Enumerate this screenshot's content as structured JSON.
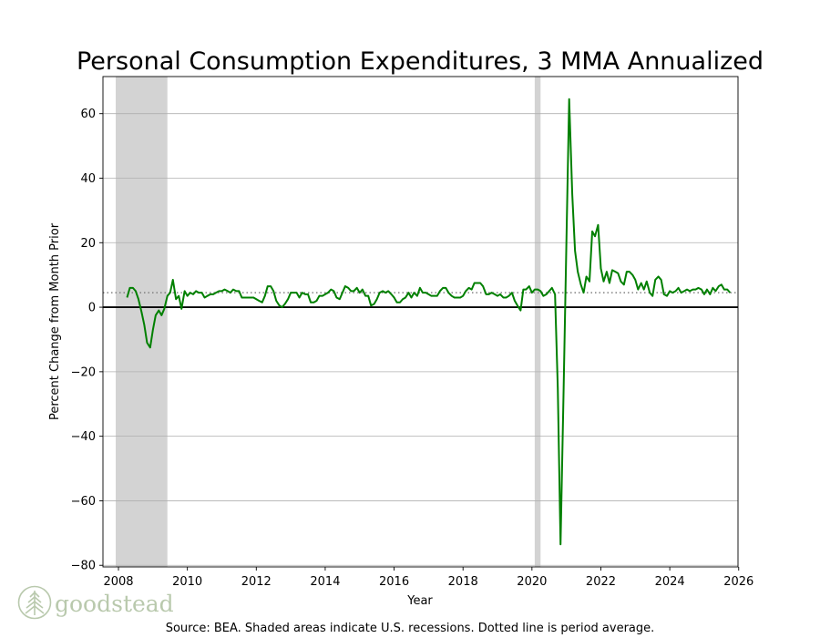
{
  "chart_data": {
    "type": "line",
    "title": "Personal Consumption Expenditures, 3 MMA Annualized",
    "xlabel": "Year",
    "ylabel": "Percent Change from Month Prior",
    "source_note": "Source: BEA. Shaded areas indicate U.S. recessions. Dotted line is period average.",
    "xlim": [
      2007.55,
      2025.98
    ],
    "ylim": [
      -80.5,
      71.5
    ],
    "x_ticks": [
      2008,
      2010,
      2012,
      2014,
      2016,
      2018,
      2020,
      2022,
      2024,
      2026
    ],
    "y_ticks": [
      -80,
      -60,
      -40,
      -20,
      0,
      20,
      40,
      60
    ],
    "grid": "horizontal",
    "average": 4.5,
    "recessions": [
      [
        2007.92,
        2009.42
      ],
      [
        2020.08,
        2020.25
      ]
    ],
    "series": [
      {
        "color": "#008000",
        "points": [
          [
            2008.25,
            3
          ],
          [
            2008.33,
            6
          ],
          [
            2008.42,
            6
          ],
          [
            2008.5,
            5
          ],
          [
            2008.58,
            2.5
          ],
          [
            2008.67,
            -1.5
          ],
          [
            2008.75,
            -5.5
          ],
          [
            2008.83,
            -11
          ],
          [
            2008.92,
            -12.5
          ],
          [
            2009.0,
            -7
          ],
          [
            2009.08,
            -2.5
          ],
          [
            2009.17,
            -1
          ],
          [
            2009.25,
            -2.5
          ],
          [
            2009.33,
            -0.5
          ],
          [
            2009.42,
            3.5
          ],
          [
            2009.5,
            4.5
          ],
          [
            2009.58,
            8.5
          ],
          [
            2009.67,
            2.5
          ],
          [
            2009.75,
            3.5
          ],
          [
            2009.83,
            -0.5
          ],
          [
            2009.92,
            5
          ],
          [
            2010.0,
            3.5
          ],
          [
            2010.08,
            4.5
          ],
          [
            2010.17,
            4
          ],
          [
            2010.25,
            5
          ],
          [
            2010.33,
            4.5
          ],
          [
            2010.42,
            4.5
          ],
          [
            2010.5,
            3
          ],
          [
            2010.58,
            3.5
          ],
          [
            2010.67,
            4
          ],
          [
            2010.75,
            4
          ],
          [
            2010.83,
            4.5
          ],
          [
            2010.92,
            5
          ],
          [
            2011.0,
            5
          ],
          [
            2011.08,
            5.5
          ],
          [
            2011.17,
            5
          ],
          [
            2011.25,
            4.5
          ],
          [
            2011.33,
            5.5
          ],
          [
            2011.42,
            5
          ],
          [
            2011.5,
            5
          ],
          [
            2011.58,
            3
          ],
          [
            2011.67,
            3
          ],
          [
            2011.75,
            3
          ],
          [
            2011.83,
            3
          ],
          [
            2011.92,
            3
          ],
          [
            2012.0,
            2.5
          ],
          [
            2012.08,
            2
          ],
          [
            2012.17,
            1.5
          ],
          [
            2012.25,
            3.5
          ],
          [
            2012.33,
            6.5
          ],
          [
            2012.42,
            6.5
          ],
          [
            2012.5,
            5
          ],
          [
            2012.58,
            2
          ],
          [
            2012.67,
            0.5
          ],
          [
            2012.75,
            0
          ],
          [
            2012.83,
            1
          ],
          [
            2012.92,
            2.5
          ],
          [
            2013.0,
            4.5
          ],
          [
            2013.08,
            4.5
          ],
          [
            2013.17,
            4.5
          ],
          [
            2013.25,
            3
          ],
          [
            2013.33,
            4.5
          ],
          [
            2013.42,
            4
          ],
          [
            2013.5,
            4
          ],
          [
            2013.58,
            1.5
          ],
          [
            2013.67,
            1.5
          ],
          [
            2013.75,
            2
          ],
          [
            2013.83,
            3.5
          ],
          [
            2013.92,
            3.5
          ],
          [
            2014.0,
            4
          ],
          [
            2014.08,
            4.5
          ],
          [
            2014.17,
            5.5
          ],
          [
            2014.25,
            5
          ],
          [
            2014.33,
            3
          ],
          [
            2014.42,
            2.5
          ],
          [
            2014.5,
            4.5
          ],
          [
            2014.58,
            6.5
          ],
          [
            2014.67,
            6
          ],
          [
            2014.75,
            5
          ],
          [
            2014.83,
            5
          ],
          [
            2014.92,
            6
          ],
          [
            2015.0,
            4.5
          ],
          [
            2015.08,
            5.5
          ],
          [
            2015.17,
            3.5
          ],
          [
            2015.25,
            3.5
          ],
          [
            2015.33,
            0.5
          ],
          [
            2015.42,
            1
          ],
          [
            2015.5,
            2.5
          ],
          [
            2015.58,
            4.5
          ],
          [
            2015.67,
            5
          ],
          [
            2015.75,
            4.5
          ],
          [
            2015.83,
            5
          ],
          [
            2015.92,
            4
          ],
          [
            2016.0,
            3
          ],
          [
            2016.08,
            1.5
          ],
          [
            2016.17,
            1.5
          ],
          [
            2016.25,
            2.5
          ],
          [
            2016.33,
            3
          ],
          [
            2016.42,
            4.5
          ],
          [
            2016.5,
            3
          ],
          [
            2016.58,
            4.5
          ],
          [
            2016.67,
            3.5
          ],
          [
            2016.75,
            6
          ],
          [
            2016.83,
            4.5
          ],
          [
            2016.92,
            4.5
          ],
          [
            2017.0,
            4
          ],
          [
            2017.08,
            3.5
          ],
          [
            2017.17,
            3.5
          ],
          [
            2017.25,
            3.5
          ],
          [
            2017.33,
            5
          ],
          [
            2017.42,
            6
          ],
          [
            2017.5,
            6
          ],
          [
            2017.58,
            4.5
          ],
          [
            2017.67,
            3.5
          ],
          [
            2017.75,
            3
          ],
          [
            2017.83,
            3
          ],
          [
            2017.92,
            3
          ],
          [
            2018.0,
            3.5
          ],
          [
            2018.08,
            5
          ],
          [
            2018.17,
            6
          ],
          [
            2018.25,
            5.5
          ],
          [
            2018.33,
            7.5
          ],
          [
            2018.42,
            7.5
          ],
          [
            2018.5,
            7.5
          ],
          [
            2018.58,
            6.5
          ],
          [
            2018.67,
            4
          ],
          [
            2018.75,
            4
          ],
          [
            2018.83,
            4.5
          ],
          [
            2018.92,
            4
          ],
          [
            2019.0,
            3.5
          ],
          [
            2019.08,
            4
          ],
          [
            2019.17,
            3
          ],
          [
            2019.25,
            3
          ],
          [
            2019.33,
            3.5
          ],
          [
            2019.42,
            4.5
          ],
          [
            2019.5,
            2
          ],
          [
            2019.58,
            0.5
          ],
          [
            2019.67,
            -1
          ],
          [
            2019.75,
            5.5
          ],
          [
            2019.83,
            5.5
          ],
          [
            2019.92,
            6.5
          ],
          [
            2020.0,
            4.5
          ],
          [
            2020.08,
            5.5
          ],
          [
            2020.17,
            5.5
          ],
          [
            2020.25,
            5
          ],
          [
            2020.33,
            3.5
          ],
          [
            2020.42,
            4
          ],
          [
            2020.5,
            5
          ],
          [
            2020.58,
            6
          ],
          [
            2020.67,
            4
          ],
          [
            2020.75,
            -25
          ],
          [
            2020.83,
            -73.5
          ],
          [
            2020.92,
            -25
          ],
          [
            2021.0,
            20
          ],
          [
            2021.08,
            64.5
          ],
          [
            2021.17,
            35
          ],
          [
            2021.25,
            17.5
          ],
          [
            2021.33,
            11
          ],
          [
            2021.42,
            7
          ],
          [
            2021.5,
            4.5
          ],
          [
            2021.58,
            9.5
          ],
          [
            2021.67,
            8
          ],
          [
            2021.75,
            23.5
          ],
          [
            2021.83,
            22
          ],
          [
            2021.92,
            25.5
          ],
          [
            2022.0,
            12
          ],
          [
            2022.08,
            8
          ],
          [
            2022.17,
            11
          ],
          [
            2022.25,
            7.5
          ],
          [
            2022.33,
            11.5
          ],
          [
            2022.42,
            11
          ],
          [
            2022.5,
            10.5
          ],
          [
            2022.58,
            8
          ],
          [
            2022.67,
            7
          ],
          [
            2022.75,
            11
          ],
          [
            2022.83,
            11
          ],
          [
            2022.92,
            10
          ],
          [
            2023.0,
            8.5
          ],
          [
            2023.08,
            5.5
          ],
          [
            2023.17,
            7.5
          ],
          [
            2023.25,
            5.5
          ],
          [
            2023.33,
            8
          ],
          [
            2023.42,
            4.5
          ],
          [
            2023.5,
            3.5
          ],
          [
            2023.58,
            8.5
          ],
          [
            2023.67,
            9.5
          ],
          [
            2023.75,
            8.5
          ],
          [
            2023.83,
            4
          ],
          [
            2023.92,
            3.5
          ],
          [
            2024.0,
            5
          ],
          [
            2024.08,
            4.5
          ],
          [
            2024.17,
            5
          ],
          [
            2024.25,
            6
          ],
          [
            2024.33,
            4.5
          ],
          [
            2024.42,
            5
          ],
          [
            2024.5,
            5.5
          ],
          [
            2024.58,
            5
          ],
          [
            2024.67,
            5.5
          ],
          [
            2024.75,
            5.5
          ],
          [
            2024.83,
            6
          ],
          [
            2024.92,
            5.5
          ],
          [
            2025.0,
            4
          ],
          [
            2025.08,
            5.5
          ],
          [
            2025.17,
            4
          ],
          [
            2025.25,
            6
          ],
          [
            2025.33,
            5
          ],
          [
            2025.42,
            6.5
          ],
          [
            2025.5,
            7
          ],
          [
            2025.58,
            5.5
          ],
          [
            2025.67,
            5.5
          ],
          [
            2025.75,
            4.5
          ]
        ]
      }
    ]
  },
  "logo": {
    "text": "goodstead",
    "icon": "tree-icon"
  }
}
